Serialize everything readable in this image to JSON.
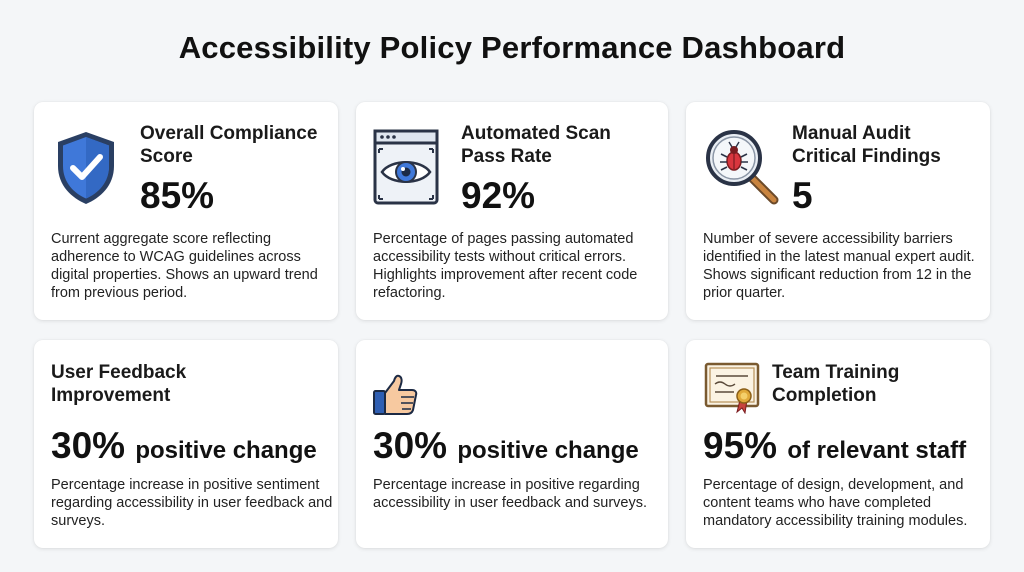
{
  "header": {
    "title": "Accessibility Policy Performance Dashboard"
  },
  "cards": [
    {
      "icon": "shield-check-icon",
      "label_line1": "Overall Compliance",
      "label_line2": "Score",
      "value": "85%",
      "suffix": "",
      "description": "Current aggregate score reflecting adherence to WCAG guidelines across digital properties. Shows an upward trend from previous period."
    },
    {
      "icon": "eye-browser-icon",
      "label_line1": "Automated Scan",
      "label_line2": "Pass Rate",
      "value": "92%",
      "suffix": "",
      "description": "Percentage of pages passing automated accessibility tests without critical errors. Highlights improvement after recent code refactoring."
    },
    {
      "icon": "magnifier-bug-icon",
      "label_line1": "Manual Audit",
      "label_line2": "Critical Findings",
      "value": "5",
      "suffix": "",
      "description": "Number of severe accessibility barriers identified in the latest manual expert audit. Shows significant reduction from 12 in the prior quarter."
    },
    {
      "icon": "",
      "label_line1": "User Feedback",
      "label_line2": "Improvement",
      "value": "30%",
      "suffix": "positive change",
      "description": "Percentage increase in positive sentiment regarding accessibility in user feedback and surveys."
    },
    {
      "icon": "thumbs-up-icon",
      "label_line1": "",
      "label_line2": "",
      "value": "30%",
      "suffix": "positive change",
      "description": "Percentage increase in positive regarding accessibility in user feedback and surveys."
    },
    {
      "icon": "certificate-icon",
      "label_line1": "Team Training",
      "label_line2": "Completion",
      "value": "95%",
      "suffix": "of relevant staff",
      "description": "Percentage of design, development, and content teams who have completed mandatory accessibility training modules."
    }
  ]
}
